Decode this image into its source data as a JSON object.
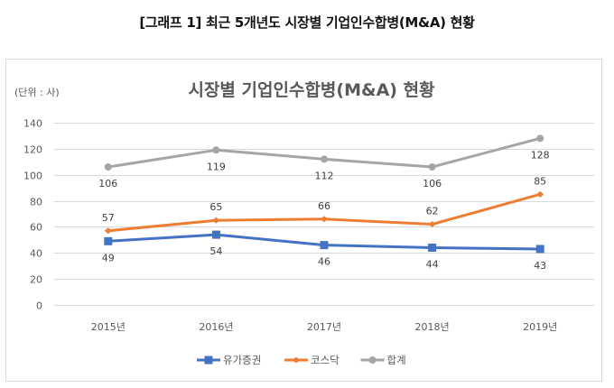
{
  "figure_caption": "[그래프 1] 최근 5개년도 시장별 기업인수합병(M&A) 현황",
  "chart_data": {
    "type": "line",
    "title": "시장별 기업인수합병(M&A) 현황",
    "unit_label": "(단위 : 사)",
    "xlabel": "",
    "ylabel": "",
    "categories": [
      "2015년",
      "2016년",
      "2017년",
      "2018년",
      "2019년"
    ],
    "ylim": [
      0,
      140
    ],
    "yticks": [
      0,
      20,
      40,
      60,
      80,
      100,
      120,
      140
    ],
    "grid": true,
    "legend_position": "bottom",
    "series": [
      {
        "name": "유가증권",
        "values": [
          49,
          54,
          46,
          44,
          43
        ],
        "color": "#4472c4",
        "marker": "square",
        "label_position": "below"
      },
      {
        "name": "코스닥",
        "values": [
          57,
          65,
          66,
          62,
          85
        ],
        "color": "#ed7d31",
        "marker": "diamond",
        "label_position": "above"
      },
      {
        "name": "합계",
        "values": [
          106,
          119,
          112,
          106,
          128
        ],
        "color": "#a5a5a5",
        "marker": "circle",
        "label_position": "below"
      }
    ]
  }
}
